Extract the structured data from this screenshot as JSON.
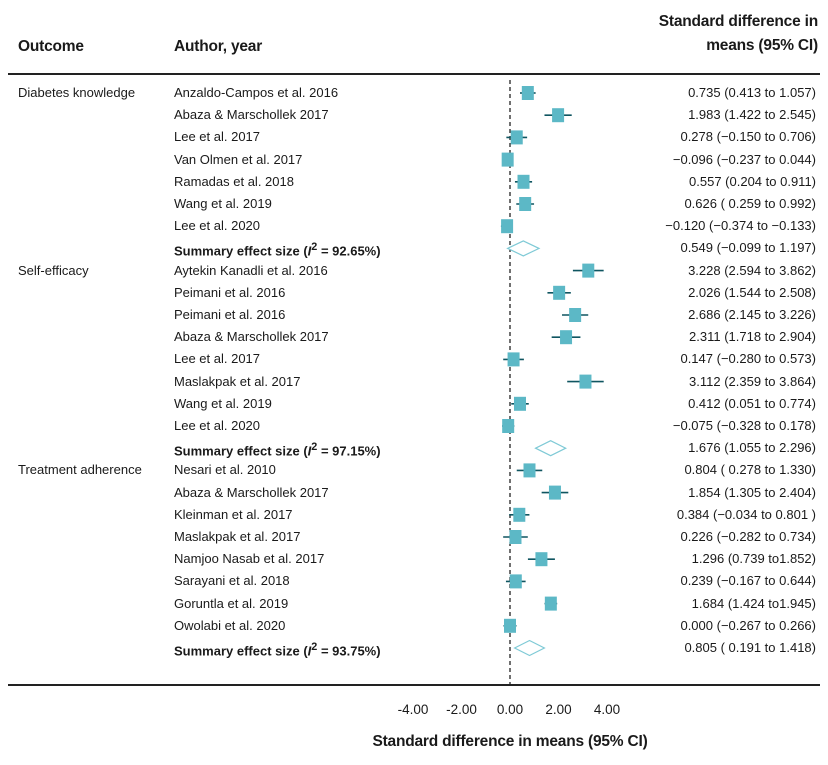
{
  "header": {
    "outcome": "Outcome",
    "author": "Author, year",
    "effect_line1": "Standard difference in",
    "effect_line2": "means (95% CI)"
  },
  "colors": {
    "marker": "#5cb8c6",
    "summary": "#7fcad6",
    "ci": "#0f5560",
    "reference": "#111111"
  },
  "chart_data": {
    "type": "forest",
    "xlabel": "Standard difference in means (95% CI)",
    "xlim": [
      -4,
      4
    ],
    "xticks": [
      "-4.00",
      "-2.00",
      "0.00",
      "2.00",
      "4.00"
    ],
    "xtick_values": [
      -4,
      -2,
      0,
      2,
      4
    ],
    "reference_line": 0,
    "rows": [
      {
        "outcome": "Diabetes knowledge",
        "author": "Anzaldo-Campos et al. 2016",
        "est": 0.735,
        "lo": 0.413,
        "hi": 1.057,
        "label": "0.735 (0.413 to 1.057)",
        "summary": false
      },
      {
        "outcome": "",
        "author": "Abaza & Marschollek 2017",
        "est": 1.983,
        "lo": 1.422,
        "hi": 2.545,
        "label": "1.983 (1.422 to 2.545)",
        "summary": false
      },
      {
        "outcome": "",
        "author": "Lee et al. 2017",
        "est": 0.278,
        "lo": -0.15,
        "hi": 0.706,
        "label": "0.278 (−0.150 to 0.706)",
        "summary": false
      },
      {
        "outcome": "",
        "author": "Van Olmen et al. 2017",
        "est": -0.096,
        "lo": -0.237,
        "hi": 0.044,
        "label": "−0.096 (−0.237 to 0.044)",
        "summary": false
      },
      {
        "outcome": "",
        "author": "Ramadas et al. 2018",
        "est": 0.557,
        "lo": 0.204,
        "hi": 0.911,
        "label": "0.557 (0.204 to 0.911)",
        "summary": false
      },
      {
        "outcome": "",
        "author": "Wang et al. 2019",
        "est": 0.626,
        "lo": 0.259,
        "hi": 0.992,
        "label": "0.626 ( 0.259 to 0.992)",
        "summary": false
      },
      {
        "outcome": "",
        "author": "Lee et al. 2020",
        "est": -0.12,
        "lo": -0.374,
        "hi": -0.133,
        "label": "−0.120 (−0.374 to −0.133)",
        "summary": false
      },
      {
        "outcome": "",
        "author": "Summary effect size (I² = 92.65%)",
        "est": 0.549,
        "lo": -0.099,
        "hi": 1.197,
        "label": "0.549 (−0.099 to 1.197)",
        "summary": true
      },
      {
        "outcome": "Self-efficacy",
        "author": "Aytekin Kanadli et al. 2016",
        "est": 3.228,
        "lo": 2.594,
        "hi": 3.862,
        "label": "3.228 (2.594 to 3.862)",
        "summary": false
      },
      {
        "outcome": "",
        "author": "Peimani et al. 2016",
        "est": 2.026,
        "lo": 1.544,
        "hi": 2.508,
        "label": "2.026 (1.544 to 2.508)",
        "summary": false
      },
      {
        "outcome": "",
        "author": "Peimani et al. 2016",
        "est": 2.686,
        "lo": 2.145,
        "hi": 3.226,
        "label": "2.686 (2.145 to 3.226)",
        "summary": false
      },
      {
        "outcome": "",
        "author": "Abaza & Marschollek 2017",
        "est": 2.311,
        "lo": 1.718,
        "hi": 2.904,
        "label": "2.311 (1.718 to 2.904)",
        "summary": false
      },
      {
        "outcome": "",
        "author": "Lee et al. 2017",
        "est": 0.147,
        "lo": -0.28,
        "hi": 0.573,
        "label": "0.147 (−0.280 to 0.573)",
        "summary": false
      },
      {
        "outcome": "",
        "author": "Maslakpak et al. 2017",
        "est": 3.112,
        "lo": 2.359,
        "hi": 3.864,
        "label": "3.112 (2.359 to 3.864)",
        "summary": false
      },
      {
        "outcome": "",
        "author": "Wang et al. 2019",
        "est": 0.412,
        "lo": 0.051,
        "hi": 0.774,
        "label": "0.412 (0.051 to 0.774)",
        "summary": false
      },
      {
        "outcome": "",
        "author": "Lee et al. 2020",
        "est": -0.075,
        "lo": -0.328,
        "hi": 0.178,
        "label": "−0.075 (−0.328 to 0.178)",
        "summary": false
      },
      {
        "outcome": "",
        "author": "Summary effect size (I² = 97.15%)",
        "est": 1.676,
        "lo": 1.055,
        "hi": 2.296,
        "label": "1.676 (1.055 to 2.296)",
        "summary": true
      },
      {
        "outcome": "Treatment adherence",
        "author": "Nesari et al. 2010",
        "est": 0.804,
        "lo": 0.278,
        "hi": 1.33,
        "label": "0.804 ( 0.278 to 1.330)",
        "summary": false
      },
      {
        "outcome": "",
        "author": "Abaza & Marschollek 2017",
        "est": 1.854,
        "lo": 1.305,
        "hi": 2.404,
        "label": "1.854 (1.305 to 2.404)",
        "summary": false
      },
      {
        "outcome": "",
        "author": "Kleinman et al. 2017",
        "est": 0.384,
        "lo": -0.034,
        "hi": 0.801,
        "label": "0.384 (−0.034 to 0.801 )",
        "summary": false
      },
      {
        "outcome": "",
        "author": "Maslakpak et al. 2017",
        "est": 0.226,
        "lo": -0.282,
        "hi": 0.734,
        "label": "0.226 (−0.282 to 0.734)",
        "summary": false
      },
      {
        "outcome": "",
        "author": "Namjoo Nasab et al. 2017",
        "est": 1.296,
        "lo": 0.739,
        "hi": 1.852,
        "label": "1.296 (0.739 to1.852)",
        "summary": false
      },
      {
        "outcome": "",
        "author": "Sarayani et al. 2018",
        "est": 0.239,
        "lo": -0.167,
        "hi": 0.644,
        "label": "0.239 (−0.167 to 0.644)",
        "summary": false
      },
      {
        "outcome": "",
        "author": "Goruntla et al. 2019",
        "est": 1.684,
        "lo": 1.424,
        "hi": 1.945,
        "label": "1.684 (1.424 to1.945)",
        "summary": false
      },
      {
        "outcome": "",
        "author": "Owolabi et al. 2020",
        "est": 0.0,
        "lo": -0.267,
        "hi": 0.266,
        "label": "0.000 (−0.267 to 0.266)",
        "summary": false
      },
      {
        "outcome": "",
        "author": "Summary effect size (I² = 93.75%)",
        "est": 0.805,
        "lo": 0.191,
        "hi": 1.418,
        "label": "0.805 ( 0.191 to 1.418)",
        "summary": true
      }
    ]
  }
}
